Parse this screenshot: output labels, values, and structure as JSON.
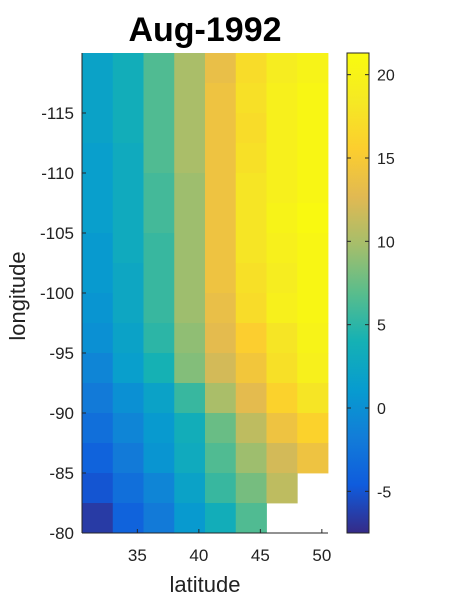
{
  "chart_data": {
    "type": "heatmap",
    "title": "Aug-1992",
    "xlabel": "latitude",
    "ylabel": "longitude",
    "x_ticks": [
      "35",
      "40",
      "45",
      "50"
    ],
    "y_ticks": [
      "-115",
      "-110",
      "-105",
      "-100",
      "-95",
      "-90",
      "-85",
      "-80"
    ],
    "colorbar_ticks": [
      "-5",
      "0",
      "5",
      "10",
      "15",
      "20"
    ],
    "colorbar_range": [
      -7.5,
      21.3
    ],
    "colormap": "parula",
    "xlim": [
      30.5,
      50.5
    ],
    "ylim": [
      -120,
      -80
    ],
    "x_centers": [
      31.75,
      34.25,
      36.75,
      39.25,
      41.75,
      44.25,
      46.75,
      49.25
    ],
    "y_centers": [
      -118.75,
      -116.25,
      -113.75,
      -111.25,
      -108.75,
      -106.25,
      -103.75,
      -101.25,
      -98.75,
      -96.25,
      -93.75,
      -91.25,
      -88.75,
      -86.25,
      -83.75,
      -81.25
    ],
    "values": [
      [
        2.0,
        3.5,
        6.5,
        10.0,
        13.5,
        17.0,
        19.0,
        20.0
      ],
      [
        2.0,
        3.5,
        6.5,
        10.0,
        14.0,
        17.5,
        19.5,
        20.5
      ],
      [
        2.0,
        3.5,
        6.5,
        10.0,
        14.0,
        17.0,
        19.5,
        20.5
      ],
      [
        1.5,
        3.0,
        6.5,
        10.0,
        14.0,
        17.5,
        19.5,
        20.5
      ],
      [
        1.5,
        3.0,
        6.0,
        9.5,
        14.0,
        18.0,
        19.5,
        20.5
      ],
      [
        1.5,
        3.0,
        6.0,
        9.5,
        14.0,
        18.0,
        20.0,
        21.0
      ],
      [
        1.0,
        3.0,
        5.5,
        9.5,
        14.0,
        18.0,
        19.5,
        20.5
      ],
      [
        1.0,
        2.5,
        5.5,
        9.5,
        14.0,
        17.5,
        19.0,
        20.5
      ],
      [
        0.5,
        2.5,
        5.5,
        9.5,
        13.5,
        17.0,
        19.5,
        20.5
      ],
      [
        0.0,
        2.0,
        5.0,
        9.0,
        13.0,
        15.5,
        18.0,
        20.0
      ],
      [
        -1.0,
        1.5,
        4.0,
        8.5,
        12.0,
        14.5,
        17.5,
        19.5
      ],
      [
        -2.0,
        0.0,
        2.0,
        5.5,
        10.0,
        13.0,
        16.0,
        18.0
      ],
      [
        -3.0,
        -1.0,
        1.0,
        3.5,
        7.5,
        11.0,
        14.0,
        16.0
      ],
      [
        -4.0,
        -2.0,
        0.5,
        3.0,
        6.5,
        9.5,
        12.0,
        14.0
      ],
      [
        -5.0,
        -3.0,
        -1.0,
        2.0,
        5.5,
        8.0,
        11.0,
        null
      ],
      [
        -6.5,
        -4.0,
        -2.0,
        1.0,
        3.5,
        6.5,
        null,
        null
      ]
    ]
  }
}
